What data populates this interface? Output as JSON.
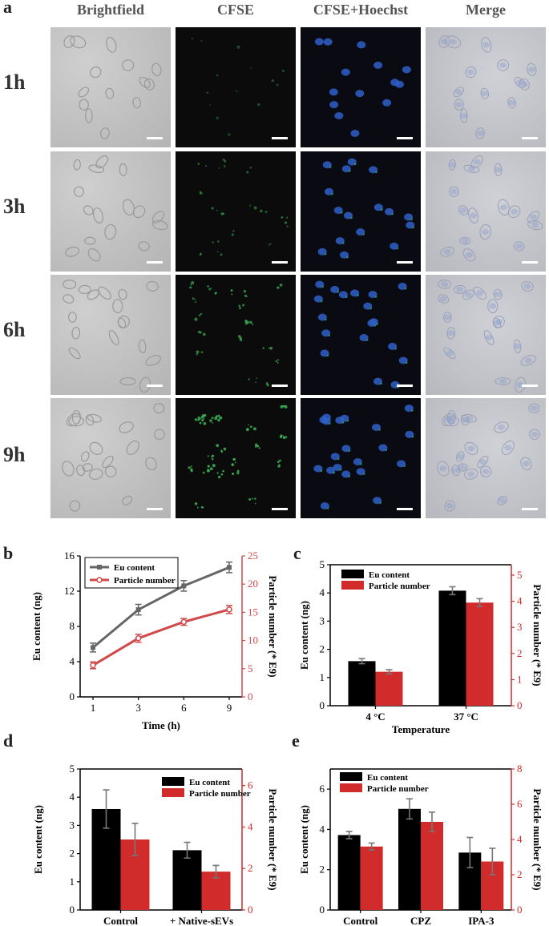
{
  "panel_a": {
    "letter": "a",
    "columns": [
      "Brightfield",
      "CFSE",
      "CFSE+Hoechst",
      "Merge"
    ],
    "rows": [
      "1h",
      "3h",
      "6h",
      "9h"
    ]
  },
  "chart_data": [
    {
      "id": "b",
      "letter": "b",
      "type": "line",
      "x": [
        1,
        3,
        6,
        9
      ],
      "categories": [
        "1",
        "3",
        "6",
        "9"
      ],
      "xlabel": "Time (h)",
      "ylabel": "Eu content (ng)",
      "y2label": "Particle number (* E9)",
      "ylim": [
        0,
        16
      ],
      "yticks": [
        0,
        4,
        8,
        12,
        16
      ],
      "y2lim": [
        0,
        25
      ],
      "y2ticks": [
        0,
        5,
        10,
        15,
        20,
        25
      ],
      "legend_position": "top-left",
      "colors": {
        "eu": "#666666",
        "particle": "#d04a4a",
        "axis2": "#d04a4a"
      },
      "series": [
        {
          "name": "Eu content",
          "axis": "left",
          "values": [
            5.6,
            9.9,
            12.6,
            14.7
          ],
          "errors": [
            0.5,
            0.6,
            0.6,
            0.6
          ]
        },
        {
          "name": "Particle number",
          "axis": "right",
          "values": [
            5.6,
            10.4,
            13.3,
            15.5
          ],
          "errors": [
            0.6,
            0.7,
            0.6,
            0.7
          ]
        }
      ]
    },
    {
      "id": "c",
      "letter": "c",
      "type": "bar",
      "categories": [
        "4 °C",
        "37 °C"
      ],
      "xlabel": "Temperature",
      "ylabel": "Eu content (ng)",
      "y2label": "Particle number (* E9)",
      "ylim": [
        0,
        5
      ],
      "yticks": [
        0,
        1,
        2,
        3,
        4,
        5
      ],
      "y2lim": [
        0,
        5.4
      ],
      "y2ticks": [
        0,
        1,
        2,
        3,
        4,
        5
      ],
      "legend_position": "top-left",
      "colors": {
        "eu": "#000000",
        "particle": "#d22b2b",
        "axis2": "#d22b2b"
      },
      "series": [
        {
          "name": "Eu content",
          "axis": "left",
          "values": [
            1.58,
            4.08
          ],
          "errors": [
            0.09,
            0.14
          ]
        },
        {
          "name": "Particle number",
          "axis": "right",
          "values": [
            1.3,
            3.95
          ],
          "errors": [
            0.08,
            0.15
          ]
        }
      ]
    },
    {
      "id": "d",
      "letter": "d",
      "type": "bar",
      "categories": [
        "Control",
        "+ Native-sEVs"
      ],
      "xlabel": "",
      "ylabel": "Eu content (ng)",
      "y2label": "Particle number (* E9)",
      "ylim": [
        0,
        5
      ],
      "yticks": [
        0,
        1,
        2,
        3,
        4,
        5
      ],
      "y2lim": [
        0,
        6.8
      ],
      "y2ticks": [
        0,
        2,
        4,
        6
      ],
      "legend_position": "top-right",
      "colors": {
        "eu": "#000000",
        "particle": "#d22b2b",
        "axis2": "#d22b2b"
      },
      "series": [
        {
          "name": "Eu content",
          "axis": "left",
          "values": [
            3.58,
            2.12
          ],
          "errors": [
            0.68,
            0.28
          ]
        },
        {
          "name": "Particle number",
          "axis": "right",
          "values": [
            3.4,
            1.85
          ],
          "errors": [
            0.78,
            0.3
          ]
        }
      ]
    },
    {
      "id": "e",
      "letter": "e",
      "type": "bar",
      "categories": [
        "Control",
        "CPZ",
        "IPA-3"
      ],
      "xlabel": "",
      "ylabel": "Eu content (ng)",
      "y2label": "Particle number (* E9)",
      "ylim": [
        0,
        7
      ],
      "yticks": [
        0,
        2,
        4,
        6
      ],
      "y2lim": [
        0,
        8
      ],
      "y2ticks": [
        0,
        2,
        4,
        6,
        8
      ],
      "legend_position": "top-left",
      "colors": {
        "eu": "#000000",
        "particle": "#d22b2b",
        "axis2": "#d22b2b"
      },
      "series": [
        {
          "name": "Eu content",
          "axis": "left",
          "values": [
            3.72,
            5.02,
            2.85
          ],
          "errors": [
            0.18,
            0.5,
            0.75
          ]
        },
        {
          "name": "Particle number",
          "axis": "right",
          "values": [
            3.6,
            5.0,
            2.75
          ],
          "errors": [
            0.2,
            0.55,
            0.75
          ]
        }
      ]
    }
  ]
}
